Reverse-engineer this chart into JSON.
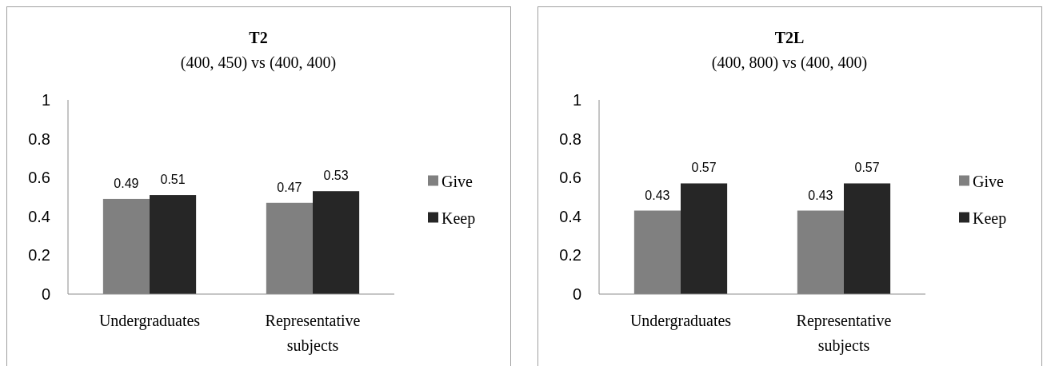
{
  "chart_data": [
    {
      "type": "bar",
      "title": "T2",
      "subtitle": "(400, 450) vs (400, 400)",
      "categories": [
        "Undergraduates",
        "Representative subjects"
      ],
      "series": [
        {
          "name": "Give",
          "color": "#808080",
          "values": [
            0.49,
            0.47
          ]
        },
        {
          "name": "Keep",
          "color": "#262626",
          "values": [
            0.51,
            0.53
          ]
        }
      ],
      "ylim": [
        0,
        1
      ],
      "yticks": [
        0,
        0.2,
        0.4,
        0.6,
        0.8,
        1
      ],
      "data_labels": true,
      "legend": "right"
    },
    {
      "type": "bar",
      "title": "T2L",
      "subtitle": "(400, 800) vs (400, 400)",
      "categories": [
        "Undergraduates",
        "Representative subjects"
      ],
      "series": [
        {
          "name": "Give",
          "color": "#808080",
          "values": [
            0.43,
            0.43
          ]
        },
        {
          "name": "Keep",
          "color": "#262626",
          "values": [
            0.57,
            0.57
          ]
        }
      ],
      "ylim": [
        0,
        1
      ],
      "yticks": [
        0,
        0.2,
        0.4,
        0.6,
        0.8,
        1
      ],
      "data_labels": true,
      "legend": "right"
    }
  ]
}
